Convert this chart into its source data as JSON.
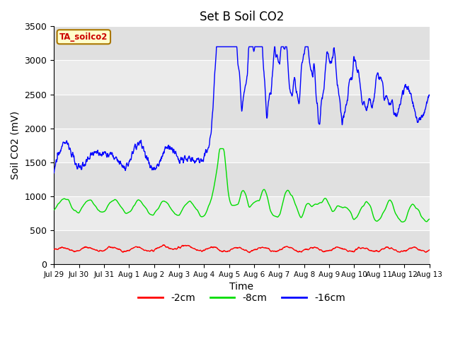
{
  "title": "Set B Soil CO2",
  "xlabel": "Time",
  "ylabel": "Soil CO2 (mV)",
  "ylim": [
    0,
    3500
  ],
  "legend_label": "TA_soilco2",
  "series_labels": [
    "-2cm",
    "-8cm",
    "-16cm"
  ],
  "series_colors": [
    "#ff0000",
    "#00dd00",
    "#0000ff"
  ],
  "background_color": "#ffffff",
  "plot_bg_color": "#e8e8e8",
  "band_color_light": "#ebebeb",
  "band_color_dark": "#d8d8d8",
  "tick_labels": [
    "Jul 29",
    "Jul 30",
    "Jul 31",
    "Aug 1",
    "Aug 2",
    "Aug 3",
    "Aug 4",
    "Aug 5",
    "Aug 6",
    "Aug 7",
    "Aug 8",
    "Aug 9",
    "Aug 10",
    "Aug 11",
    "Aug 12",
    "Aug 13"
  ],
  "title_fontsize": 12,
  "axis_fontsize": 9,
  "xlabel_fontsize": 10,
  "ylabel_fontsize": 10
}
